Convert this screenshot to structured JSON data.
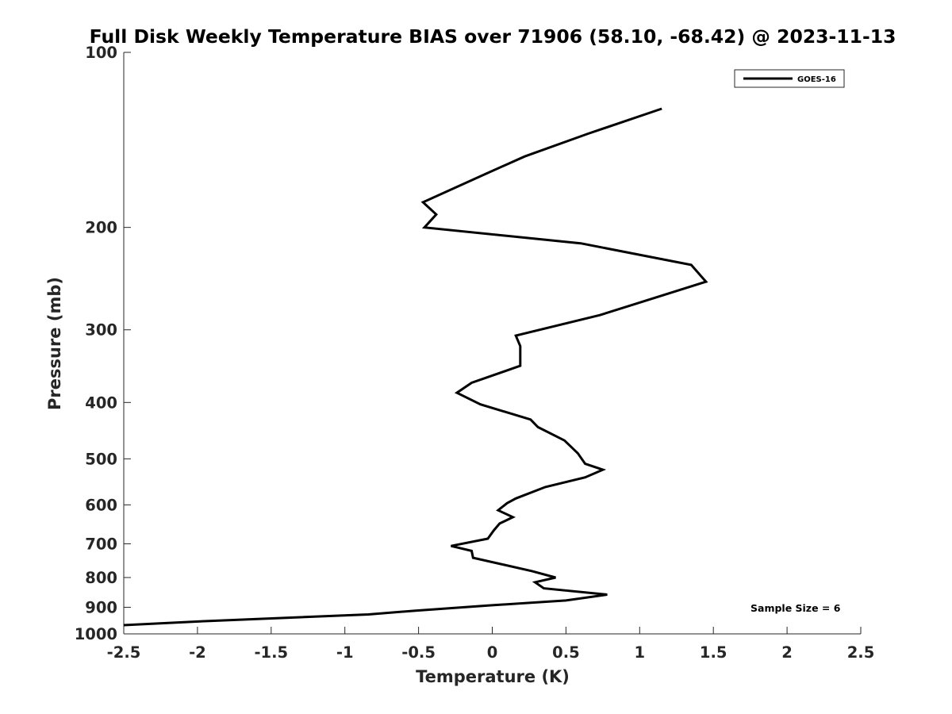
{
  "chart_data": {
    "type": "line",
    "title": "Full Disk Weekly Temperature BIAS over 71906 (58.10, -68.42) @ 2023-11-13",
    "xlabel": "Temperature (K)",
    "ylabel": "Pressure (mb)",
    "xlim": [
      -2.5,
      2.5
    ],
    "ylim": [
      1000,
      100
    ],
    "yscale": "log",
    "x_ticks": [
      "-2.5",
      "-2",
      "-1.5",
      "-1",
      "-0.5",
      "0",
      "0.5",
      "1",
      "1.5",
      "2",
      "2.5"
    ],
    "y_ticks": [
      "100",
      "200",
      "300",
      "400",
      "500",
      "600",
      "700",
      "800",
      "900",
      "1000"
    ],
    "grid": false,
    "legend_position": "top-right",
    "series": [
      {
        "name": "GOES-16",
        "color": "#000000",
        "points": [
          {
            "x": 1.15,
            "p": 125
          },
          {
            "x": 0.65,
            "p": 138
          },
          {
            "x": 0.22,
            "p": 151
          },
          {
            "x": -0.05,
            "p": 162
          },
          {
            "x": -0.47,
            "p": 181
          },
          {
            "x": -0.38,
            "p": 190
          },
          {
            "x": -0.46,
            "p": 200
          },
          {
            "x": 0.6,
            "p": 213
          },
          {
            "x": 1.35,
            "p": 232
          },
          {
            "x": 1.45,
            "p": 248
          },
          {
            "x": 0.73,
            "p": 283
          },
          {
            "x": 0.16,
            "p": 307
          },
          {
            "x": 0.19,
            "p": 320
          },
          {
            "x": 0.19,
            "p": 346
          },
          {
            "x": -0.14,
            "p": 370
          },
          {
            "x": -0.24,
            "p": 385
          },
          {
            "x": -0.08,
            "p": 403
          },
          {
            "x": 0.26,
            "p": 428
          },
          {
            "x": 0.31,
            "p": 441
          },
          {
            "x": 0.49,
            "p": 465
          },
          {
            "x": 0.58,
            "p": 489
          },
          {
            "x": 0.63,
            "p": 510
          },
          {
            "x": 0.75,
            "p": 522
          },
          {
            "x": 0.63,
            "p": 538
          },
          {
            "x": 0.36,
            "p": 559
          },
          {
            "x": 0.16,
            "p": 585
          },
          {
            "x": 0.1,
            "p": 596
          },
          {
            "x": 0.04,
            "p": 613
          },
          {
            "x": 0.14,
            "p": 630
          },
          {
            "x": 0.05,
            "p": 646
          },
          {
            "x": 0.01,
            "p": 664
          },
          {
            "x": -0.03,
            "p": 686
          },
          {
            "x": -0.28,
            "p": 706
          },
          {
            "x": -0.14,
            "p": 720
          },
          {
            "x": -0.13,
            "p": 740
          },
          {
            "x": 0.27,
            "p": 780
          },
          {
            "x": 0.43,
            "p": 800
          },
          {
            "x": 0.29,
            "p": 815
          },
          {
            "x": 0.35,
            "p": 835
          },
          {
            "x": 0.78,
            "p": 856
          },
          {
            "x": 0.5,
            "p": 876
          },
          {
            "x": -0.01,
            "p": 893
          },
          {
            "x": -0.52,
            "p": 912
          },
          {
            "x": -0.84,
            "p": 926
          },
          {
            "x": -1.92,
            "p": 950
          },
          {
            "x": -2.5,
            "p": 966
          }
        ]
      }
    ],
    "annotations": [
      "Sample Size = 6"
    ]
  }
}
